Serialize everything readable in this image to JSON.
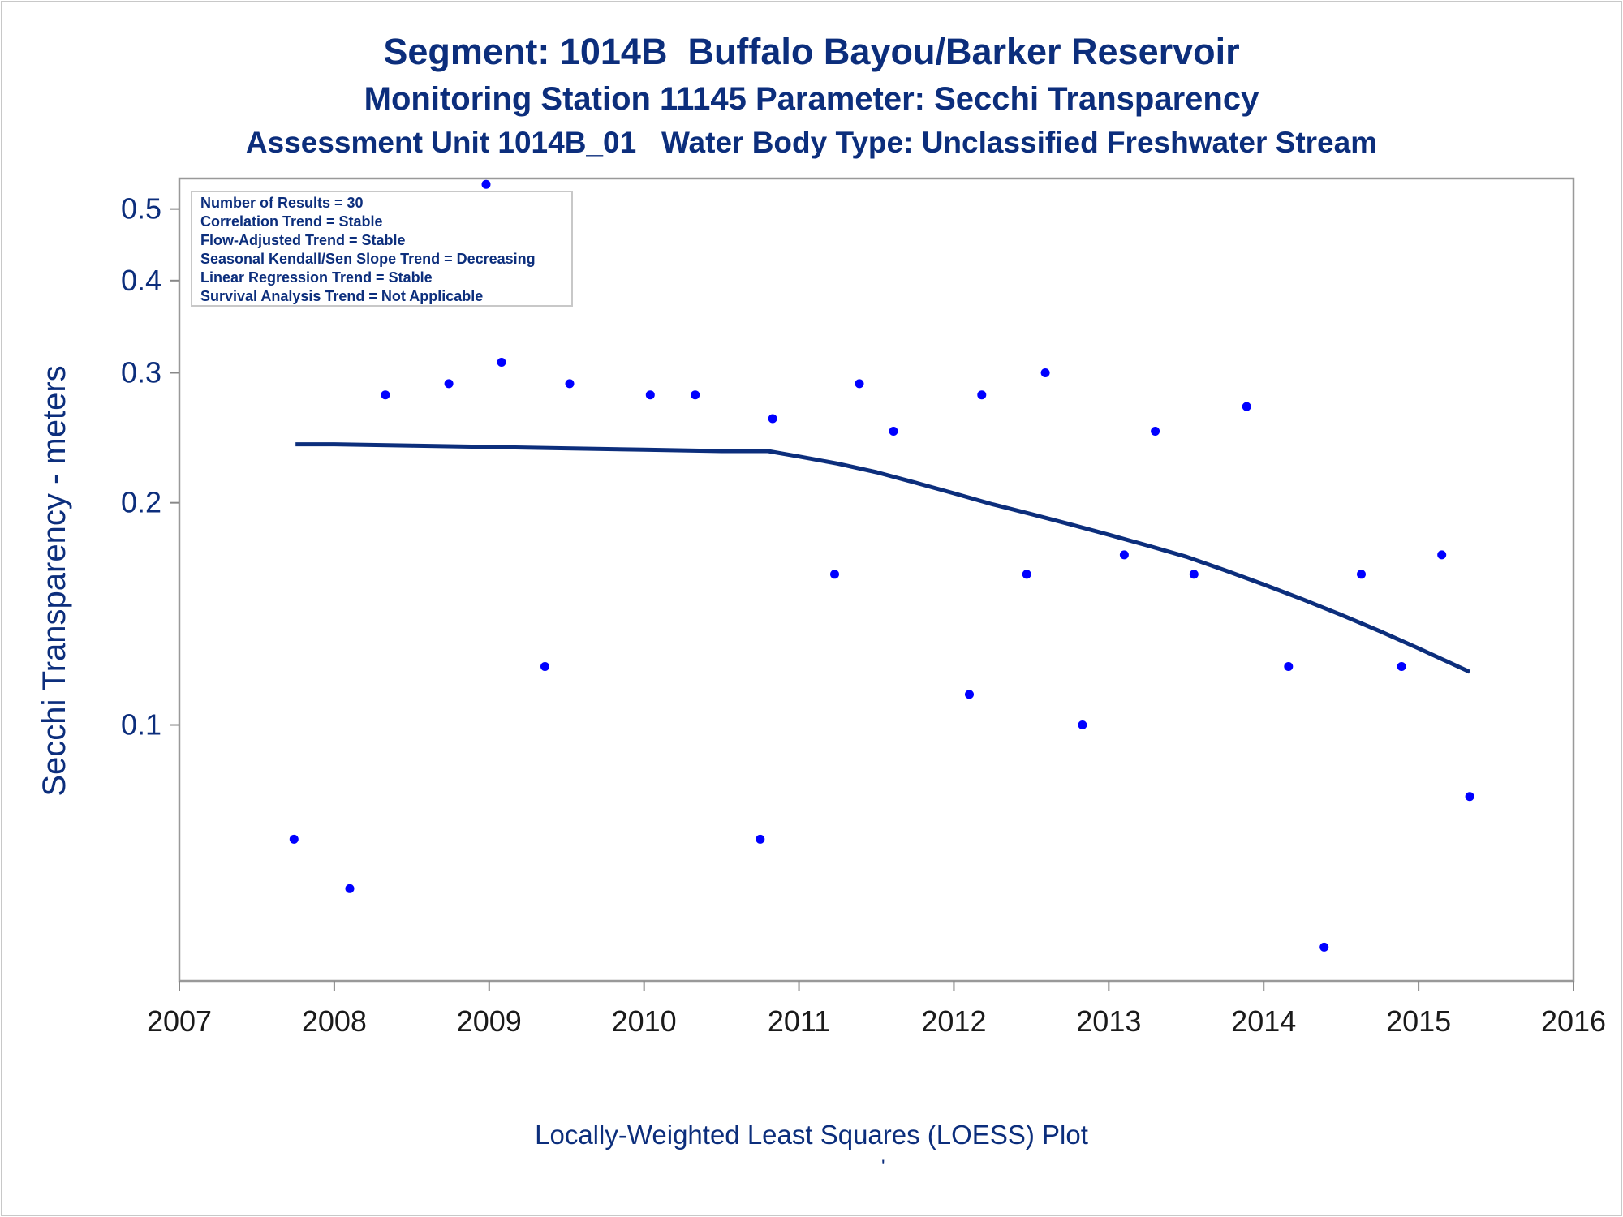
{
  "chart_data": {
    "type": "scatter",
    "title": "Segment: 1014B  Buffalo Bayou/Barker Reservoir",
    "subtitle": "Monitoring Station 11145 Parameter: Secchi Transparency",
    "subtitle2": "Assessment Unit 1014B_01   Water Body Type: Unclassified Freshwater Stream",
    "ylabel": "Secchi Transparency - meters",
    "xlabel": "",
    "footnote": "Locally-Weighted Least Squares (LOESS) Plot",
    "footnote_mark": "'",
    "x_scale": "date",
    "y_scale": "log",
    "xlim": [
      2007,
      2016
    ],
    "ylim": [
      0.045,
      0.55
    ],
    "x_ticks": [
      "2007",
      "2008",
      "2009",
      "2010",
      "2011",
      "2012",
      "2013",
      "2014",
      "2015",
      "2016"
    ],
    "y_ticks": [
      {
        "label": "0.1",
        "value": 0.1
      },
      {
        "label": "0.2",
        "value": 0.2
      },
      {
        "label": "0.3",
        "value": 0.3
      },
      {
        "label": "0.4",
        "value": 0.4
      },
      {
        "label": "0.5",
        "value": 0.5
      }
    ],
    "grid": false,
    "legend_box": {
      "placement": "top-left",
      "lines": [
        "Number of Results = 30",
        "Correlation Trend = Stable",
        "Flow-Adjusted Trend = Stable",
        "Seasonal Kendall/Sen Slope Trend = Decreasing",
        "Linear Regression Trend = Stable",
        "Survival Analysis Trend = Not Applicable"
      ]
    },
    "series": [
      {
        "kind": "points",
        "x": [
          2007.74,
          2008.1,
          2008.33,
          2008.74,
          2008.98,
          2009.08,
          2009.36,
          2009.52,
          2010.04,
          2010.33,
          2010.75,
          2010.83,
          2011.23,
          2011.39,
          2011.61,
          2012.1,
          2012.18,
          2012.47,
          2012.59,
          2012.83,
          2013.1,
          2013.3,
          2013.55,
          2013.89,
          2014.16,
          2014.39,
          2014.63,
          2014.89,
          2015.15,
          2015.33
        ],
        "y": [
          0.07,
          0.06,
          0.28,
          0.29,
          0.54,
          0.31,
          0.12,
          0.29,
          0.28,
          0.28,
          0.07,
          0.26,
          0.16,
          0.29,
          0.25,
          0.11,
          0.28,
          0.16,
          0.3,
          0.1,
          0.17,
          0.25,
          0.16,
          0.27,
          0.12,
          0.05,
          0.16,
          0.12,
          0.17,
          0.08
        ]
      },
      {
        "kind": "loess",
        "x": [
          2007.75,
          2008.0,
          2008.5,
          2009.0,
          2009.5,
          2010.0,
          2010.5,
          2010.8,
          2011.0,
          2011.25,
          2011.5,
          2011.75,
          2012.0,
          2012.25,
          2012.5,
          2012.75,
          2013.0,
          2013.25,
          2013.5,
          2013.75,
          2014.0,
          2014.25,
          2014.5,
          2014.75,
          2015.0,
          2015.33
        ],
        "y": [
          0.24,
          0.24,
          0.239,
          0.238,
          0.237,
          0.236,
          0.235,
          0.235,
          0.231,
          0.226,
          0.22,
          0.213,
          0.206,
          0.199,
          0.193,
          0.187,
          0.181,
          0.175,
          0.169,
          0.162,
          0.155,
          0.148,
          0.141,
          0.134,
          0.127,
          0.118
        ]
      }
    ],
    "colors": {
      "points": "#0000ff",
      "loess": "#0c2e7c",
      "text": "#0c2e7c",
      "axis_text": "#1a1a1a",
      "frame": "#999999"
    }
  }
}
